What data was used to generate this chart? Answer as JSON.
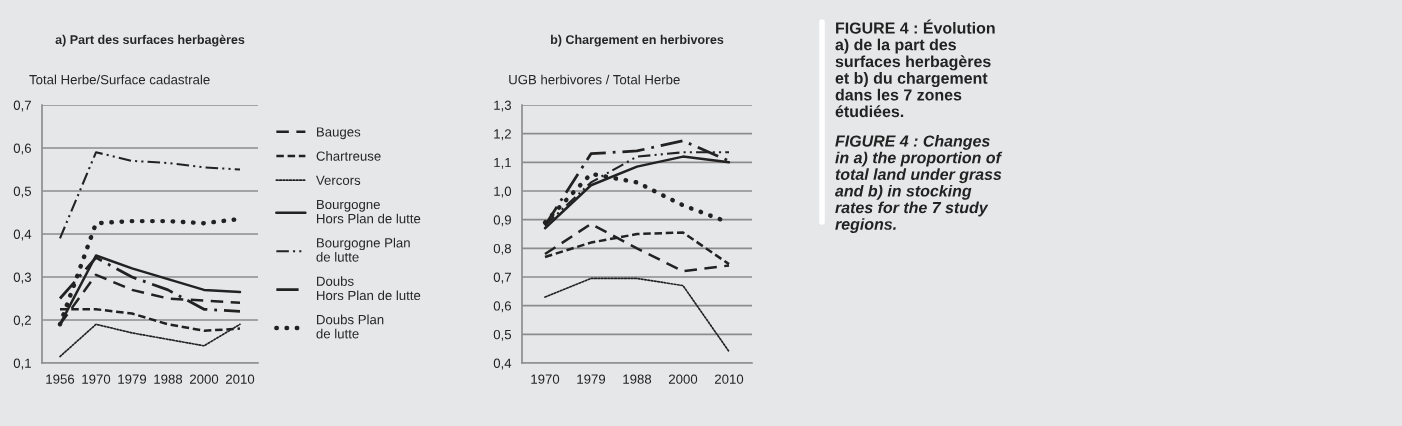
{
  "chart_data": [
    {
      "type": "line",
      "title": "a) Part des surfaces herbagères",
      "ylabel": "Total Herbe/Surface cadastrale",
      "categories": [
        "1956",
        "1970",
        "1979",
        "1988",
        "2000",
        "2010"
      ],
      "ylim": [
        0.1,
        0.7
      ],
      "yticks": [
        {
          "value": 0.1,
          "label": "0,1"
        },
        {
          "value": 0.2,
          "label": "0,2"
        },
        {
          "value": 0.3,
          "label": "0,3"
        },
        {
          "value": 0.4,
          "label": "0,4"
        },
        {
          "value": 0.5,
          "label": "0,5"
        },
        {
          "value": 0.6,
          "label": "0,6"
        },
        {
          "value": 0.7,
          "label": "0,7"
        }
      ],
      "grid": "y",
      "legend": "right",
      "series": [
        {
          "name": "Bauges",
          "color": "#222222",
          "line_style": "dashed",
          "values": [
            0.19,
            0.305,
            0.27,
            0.25,
            0.245,
            0.24
          ]
        },
        {
          "name": "Chartreuse",
          "color": "#222222",
          "line_style": "dashed",
          "values": [
            0.225,
            0.225,
            0.215,
            0.19,
            0.175,
            0.18
          ]
        },
        {
          "name": "Vercors",
          "color": "#222222",
          "line_style": "dotted",
          "values": [
            0.115,
            0.19,
            0.17,
            0.155,
            0.14,
            0.19
          ]
        },
        {
          "name": "Bourgogne Hors Plan de lutte",
          "color": "#222222",
          "line_style": "solid",
          "values": [
            0.19,
            0.35,
            0.32,
            0.295,
            0.27,
            0.265
          ]
        },
        {
          "name": "Bourgogne Plan de lutte",
          "color": "#222222",
          "line_style": "dashed",
          "values": [
            0.39,
            0.59,
            0.57,
            0.565,
            0.555,
            0.55
          ]
        },
        {
          "name": "Doubs Hors Plan de lutte",
          "color": "#222222",
          "line_style": "dashed",
          "values": [
            0.25,
            0.345,
            0.3,
            0.27,
            0.225,
            0.22
          ]
        },
        {
          "name": "Doubs Plan de lutte",
          "color": "#222222",
          "line_style": "dotted",
          "values": [
            0.19,
            0.425,
            0.43,
            0.43,
            0.425,
            0.435
          ]
        }
      ]
    },
    {
      "type": "line",
      "title": "b) Chargement en herbivores",
      "ylabel": "UGB herbivores / Total Herbe",
      "categories": [
        "1970",
        "1979",
        "1988",
        "2000",
        "2010"
      ],
      "ylim": [
        0.4,
        1.3
      ],
      "yticks": [
        {
          "value": 0.4,
          "label": "0,4"
        },
        {
          "value": 0.5,
          "label": "0,5"
        },
        {
          "value": 0.6,
          "label": "0,6"
        },
        {
          "value": 0.7,
          "label": "0,7"
        },
        {
          "value": 0.8,
          "label": "0,8"
        },
        {
          "value": 0.9,
          "label": "0,9"
        },
        {
          "value": 1.0,
          "label": "1,0"
        },
        {
          "value": 1.1,
          "label": "1,1"
        },
        {
          "value": 1.2,
          "label": "1,2"
        },
        {
          "value": 1.3,
          "label": "1,3"
        }
      ],
      "grid": "y",
      "series": [
        {
          "color": "#222222",
          "line_style": "dashed",
          "values": [
            0.78,
            0.885,
            0.8,
            0.72,
            0.74
          ]
        },
        {
          "color": "#222222",
          "line_style": "dashed",
          "values": [
            0.77,
            0.82,
            0.85,
            0.855,
            0.745
          ]
        },
        {
          "color": "#222222",
          "line_style": "dotted",
          "values": [
            0.63,
            0.695,
            0.695,
            0.67,
            0.44
          ]
        },
        {
          "color": "#222222",
          "line_style": "solid",
          "values": [
            0.87,
            1.02,
            1.085,
            1.12,
            1.1
          ]
        },
        {
          "color": "#222222",
          "line_style": "dashed",
          "values": [
            0.88,
            1.03,
            1.12,
            1.135,
            1.135
          ]
        },
        {
          "color": "#222222",
          "line_style": "dashed",
          "values": [
            0.88,
            1.13,
            1.14,
            1.175,
            1.105
          ]
        },
        {
          "color": "#222222",
          "line_style": "dotted",
          "values": [
            0.89,
            1.06,
            1.03,
            0.95,
            0.89
          ]
        }
      ]
    },
    {
      "type": "other",
      "annotations": [
        "FIGURE 4 : Évolution a) de la part des surfaces herbagères et b) du chargement dans les 7 zones étudiées.",
        "FIGURE 4 : Changes in a) the proportion of total land under grass and b) in stocking rates for the 7 study regions."
      ]
    }
  ]
}
